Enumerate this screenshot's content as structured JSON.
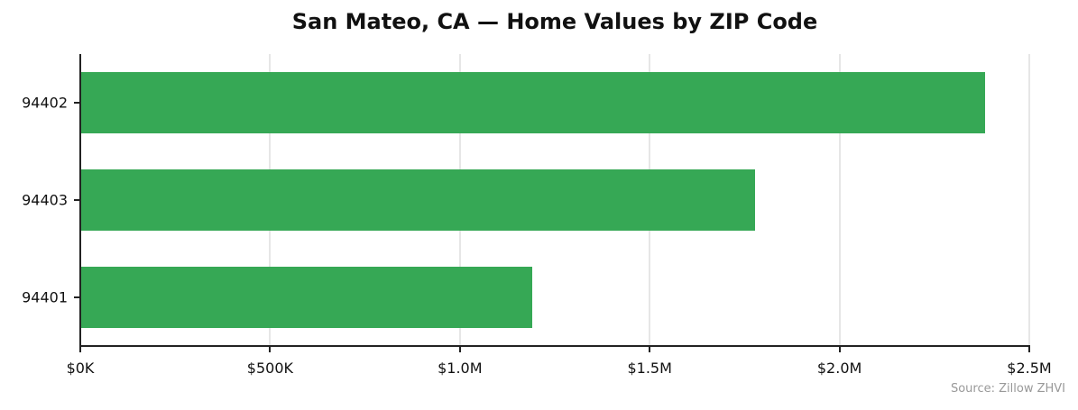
{
  "chart_data": {
    "type": "bar",
    "orientation": "horizontal",
    "title": "San Mateo, CA — Home Values by ZIP Code",
    "xlabel": "",
    "ylabel": "",
    "categories": [
      "94402",
      "94403",
      "94401"
    ],
    "values": [
      2384000,
      1778000,
      1191000
    ],
    "xlim": [
      0,
      2500000
    ],
    "xticks": [
      0,
      500000,
      1000000,
      1500000,
      2000000,
      2500000
    ],
    "xtick_labels": [
      "$0K",
      "$500K",
      "$1.0M",
      "$1.5M",
      "$2.0M",
      "$2.5M"
    ],
    "grid": "x",
    "legend": null,
    "bar_color": "#36a855",
    "annotation": "Source: Zillow ZHVI"
  },
  "ui": {
    "title": "San Mateo, CA — Home Values by ZIP Code",
    "source": "Source: Zillow ZHVI",
    "bar_color": "#36a855",
    "grid_color": "#e6e6e6",
    "axis_color": "#222222"
  }
}
